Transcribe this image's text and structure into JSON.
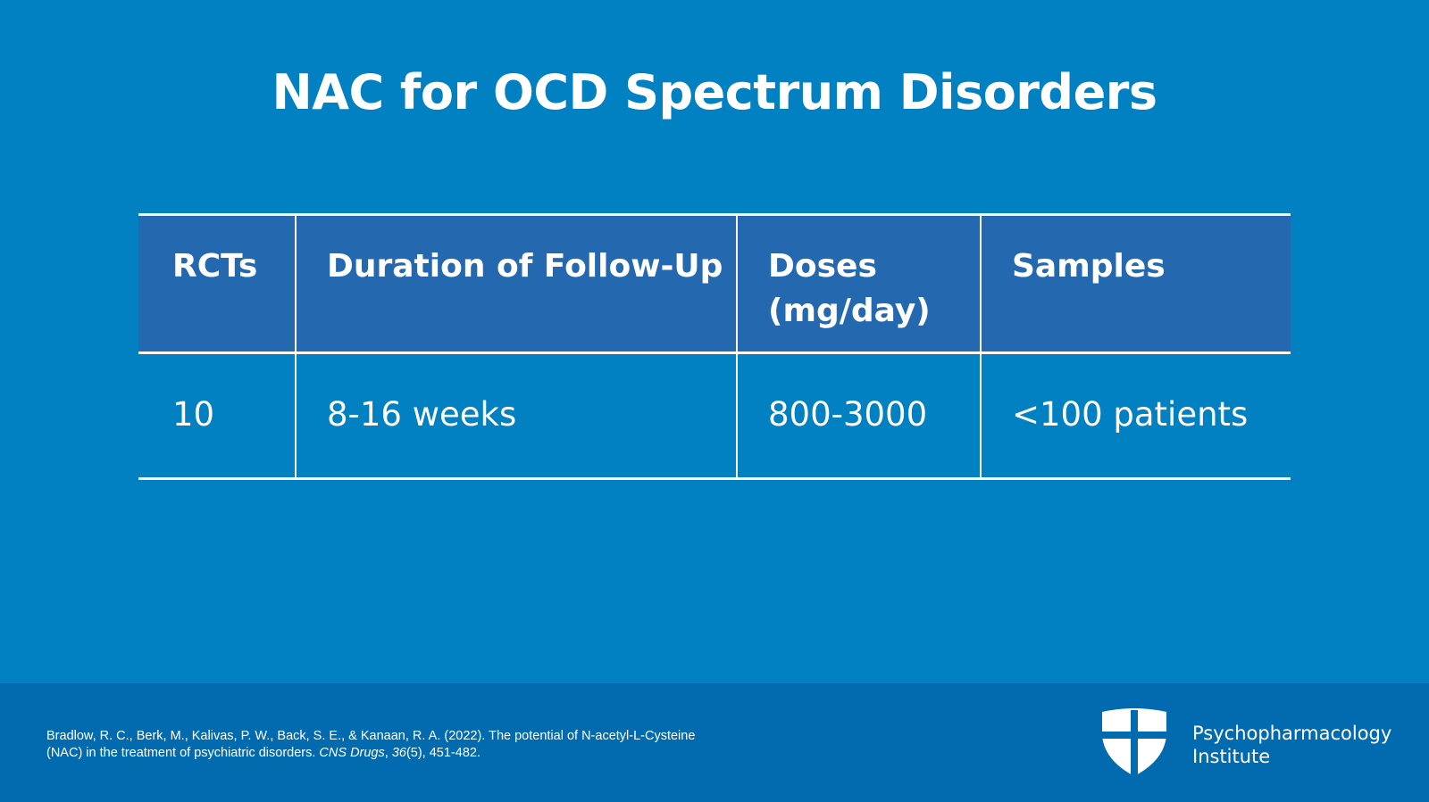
{
  "slide": {
    "title": "NAC for OCD Spectrum Disorders"
  },
  "table": {
    "headers": {
      "rcts": "RCTs",
      "duration": "Duration of Follow-Up",
      "doses_line1": "Doses",
      "doses_line2": "(mg/day)",
      "samples": "Samples"
    },
    "rows": [
      {
        "rcts": "10",
        "duration": "8-16 weeks",
        "doses": "800-3000",
        "samples": "<100 patients"
      }
    ]
  },
  "footer": {
    "citation": {
      "line1": "Bradlow, R. C., Berk, M., Kalivas, P. W., Back, S. E., & Kanaan, R. A. (2022). The potential of N-acetyl-L-Cysteine",
      "line2_prefix": "(NAC) in the treatment of psychiatric disorders. ",
      "journal": "CNS Drugs",
      "sep": ", ",
      "volume": "36",
      "issue_pages": "(5), 451-482."
    },
    "brand": {
      "line1": "Psychopharmacology",
      "line2": "Institute",
      "logo_icon": "shield-cross-icon"
    }
  },
  "colors": {
    "background": "#0180c2",
    "header_row": "#2469b0",
    "footer": "#026bb0",
    "text": "#ffffff"
  }
}
